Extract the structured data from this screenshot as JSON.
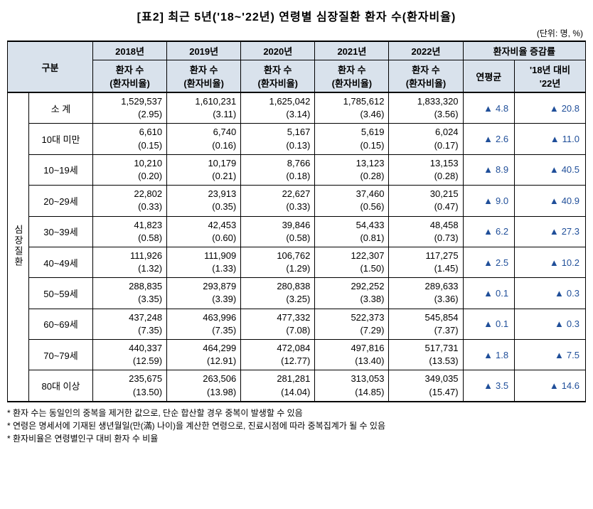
{
  "title": "[표2] 최근 5년('18~'22년) 연령별 심장질환 환자 수(환자비율)",
  "unit": "(단위: 명, %)",
  "colors": {
    "header_bg": "#d9e2ec",
    "rate_color": "#1f4e99",
    "border": "#000000",
    "background": "#ffffff"
  },
  "headers": {
    "category": "구분",
    "years": [
      "2018년",
      "2019년",
      "2020년",
      "2021년",
      "2022년"
    ],
    "sub_year": "환자 수\n(환자비율)",
    "rate_group": "환자비율 증감률",
    "rate_avg": "연평균",
    "rate_vs18": "'18년 대비 '22년"
  },
  "side_label": "심장질환",
  "rows": [
    {
      "label": "소 계",
      "y2018": {
        "count": "1,529,537",
        "ratio": "(2.95)"
      },
      "y2019": {
        "count": "1,610,231",
        "ratio": "(3.11)"
      },
      "y2020": {
        "count": "1,625,042",
        "ratio": "(3.14)"
      },
      "y2021": {
        "count": "1,785,612",
        "ratio": "(3.46)"
      },
      "y2022": {
        "count": "1,833,320",
        "ratio": "(3.56)"
      },
      "avg": "4.8",
      "vs18": "20.8"
    },
    {
      "label": "10대 미만",
      "y2018": {
        "count": "6,610",
        "ratio": "(0.15)"
      },
      "y2019": {
        "count": "6,740",
        "ratio": "(0.16)"
      },
      "y2020": {
        "count": "5,167",
        "ratio": "(0.13)"
      },
      "y2021": {
        "count": "5,619",
        "ratio": "(0.15)"
      },
      "y2022": {
        "count": "6,024",
        "ratio": "(0.17)"
      },
      "avg": "2.6",
      "vs18": "11.0"
    },
    {
      "label": "10~19세",
      "y2018": {
        "count": "10,210",
        "ratio": "(0.20)"
      },
      "y2019": {
        "count": "10,179",
        "ratio": "(0.21)"
      },
      "y2020": {
        "count": "8,766",
        "ratio": "(0.18)"
      },
      "y2021": {
        "count": "13,123",
        "ratio": "(0.28)"
      },
      "y2022": {
        "count": "13,153",
        "ratio": "(0.28)"
      },
      "avg": "8.9",
      "vs18": "40.5"
    },
    {
      "label": "20~29세",
      "y2018": {
        "count": "22,802",
        "ratio": "(0.33)"
      },
      "y2019": {
        "count": "23,913",
        "ratio": "(0.35)"
      },
      "y2020": {
        "count": "22,627",
        "ratio": "(0.33)"
      },
      "y2021": {
        "count": "37,460",
        "ratio": "(0.56)"
      },
      "y2022": {
        "count": "30,215",
        "ratio": "(0.47)"
      },
      "avg": "9.0",
      "vs18": "40.9"
    },
    {
      "label": "30~39세",
      "y2018": {
        "count": "41,823",
        "ratio": "(0.58)"
      },
      "y2019": {
        "count": "42,453",
        "ratio": "(0.60)"
      },
      "y2020": {
        "count": "39,846",
        "ratio": "(0.58)"
      },
      "y2021": {
        "count": "54,433",
        "ratio": "(0.81)"
      },
      "y2022": {
        "count": "48,458",
        "ratio": "(0.73)"
      },
      "avg": "6.2",
      "vs18": "27.3"
    },
    {
      "label": "40~49세",
      "y2018": {
        "count": "111,926",
        "ratio": "(1.32)"
      },
      "y2019": {
        "count": "111,909",
        "ratio": "(1.33)"
      },
      "y2020": {
        "count": "106,762",
        "ratio": "(1.29)"
      },
      "y2021": {
        "count": "122,307",
        "ratio": "(1.50)"
      },
      "y2022": {
        "count": "117,275",
        "ratio": "(1.45)"
      },
      "avg": "2.5",
      "vs18": "10.2"
    },
    {
      "label": "50~59세",
      "y2018": {
        "count": "288,835",
        "ratio": "(3.35)"
      },
      "y2019": {
        "count": "293,879",
        "ratio": "(3.39)"
      },
      "y2020": {
        "count": "280,838",
        "ratio": "(3.25)"
      },
      "y2021": {
        "count": "292,252",
        "ratio": "(3.38)"
      },
      "y2022": {
        "count": "289,633",
        "ratio": "(3.36)"
      },
      "avg": "0.1",
      "vs18": "0.3"
    },
    {
      "label": "60~69세",
      "y2018": {
        "count": "437,248",
        "ratio": "(7.35)"
      },
      "y2019": {
        "count": "463,996",
        "ratio": "(7.35)"
      },
      "y2020": {
        "count": "477,332",
        "ratio": "(7.08)"
      },
      "y2021": {
        "count": "522,373",
        "ratio": "(7.29)"
      },
      "y2022": {
        "count": "545,854",
        "ratio": "(7.37)"
      },
      "avg": "0.1",
      "vs18": "0.3"
    },
    {
      "label": "70~79세",
      "y2018": {
        "count": "440,337",
        "ratio": "(12.59)"
      },
      "y2019": {
        "count": "464,299",
        "ratio": "(12.91)"
      },
      "y2020": {
        "count": "472,084",
        "ratio": "(12.77)"
      },
      "y2021": {
        "count": "497,816",
        "ratio": "(13.40)"
      },
      "y2022": {
        "count": "517,731",
        "ratio": "(13.53)"
      },
      "avg": "1.8",
      "vs18": "7.5"
    },
    {
      "label": "80대 이상",
      "y2018": {
        "count": "235,675",
        "ratio": "(13.50)"
      },
      "y2019": {
        "count": "263,506",
        "ratio": "(13.98)"
      },
      "y2020": {
        "count": "281,281",
        "ratio": "(14.04)"
      },
      "y2021": {
        "count": "313,053",
        "ratio": "(14.85)"
      },
      "y2022": {
        "count": "349,035",
        "ratio": "(15.47)"
      },
      "avg": "3.5",
      "vs18": "14.6"
    }
  ],
  "notes": [
    "환자 수는 동일인의 중복을 제거한 값으로, 단순 합산할 경우 중복이 발생할 수 있음",
    "연령은 명세서에 기재된 생년월일(만(滿) 나이)을 계산한 연령으로, 진료시점에 따라 중복집계가 될 수 있음",
    "환자비율은 연령별인구 대비 환자 수 비율"
  ]
}
